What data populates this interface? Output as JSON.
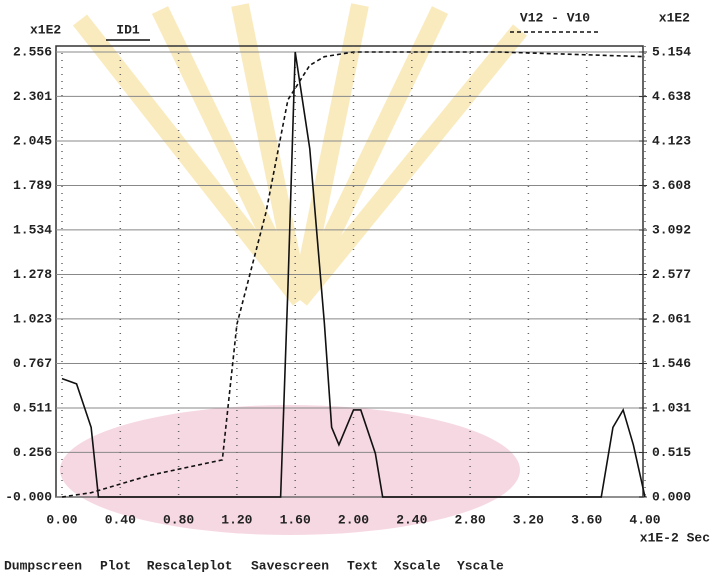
{
  "chart_data": {
    "type": "line",
    "y_unit_label": "x1E2",
    "y2_unit_label": "x1E2",
    "x_unit_label": "x1E-2 Sec",
    "xlim": [
      0,
      4
    ],
    "xticks": [
      {
        "value": 0,
        "label": "0.00"
      },
      {
        "value": 0.4,
        "label": "0.40"
      },
      {
        "value": 0.8,
        "label": "0.80"
      },
      {
        "value": 1.2,
        "label": "1.20"
      },
      {
        "value": 1.6,
        "label": "1.60"
      },
      {
        "value": 2,
        "label": "2.00"
      },
      {
        "value": 2.4,
        "label": "2.40"
      },
      {
        "value": 2.8,
        "label": "2.80"
      },
      {
        "value": 3.2,
        "label": "3.20"
      },
      {
        "value": 3.6,
        "label": "3.60"
      },
      {
        "value": 4,
        "label": "4.00"
      }
    ],
    "ylim": [
      0,
      2.556
    ],
    "yticks": [
      {
        "value": 0,
        "label": "-0.000"
      },
      0.256,
      0.511,
      0.767,
      1.023,
      1.278,
      1.534,
      1.789,
      2.045,
      2.301,
      2.556
    ],
    "y2lim": [
      0,
      5.154
    ],
    "y2ticks": [
      {
        "value": 0,
        "label": "0.000"
      },
      0.515,
      1.031,
      1.546,
      2.061,
      2.577,
      3.092,
      3.608,
      4.123,
      4.638,
      5.154
    ],
    "grid": true,
    "series": [
      {
        "name": "ID1",
        "color": "#111111",
        "style": "solid",
        "x": [
          0,
          0.1,
          0.2,
          0.25,
          1.5,
          1.55,
          1.6,
          1.7,
          1.8,
          1.85,
          1.9,
          2.0,
          2.05,
          2.15,
          2.2,
          3.7,
          3.78,
          3.85,
          3.92,
          4.0
        ],
        "values": [
          0.68,
          0.65,
          0.4,
          0,
          0,
          1.2,
          2.556,
          2.0,
          1.0,
          0.4,
          0.3,
          0.5,
          0.5,
          0.25,
          0,
          0,
          0.4,
          0.5,
          0.3,
          0
        ]
      },
      {
        "name": "V12 - V10",
        "color": "#111111",
        "style": "dashed",
        "axis": "y2",
        "x": [
          0,
          0.2,
          0.6,
          1.1,
          1.2,
          1.4,
          1.55,
          1.7,
          1.8,
          2.0,
          3.0,
          4.0
        ],
        "values": [
          0,
          0.05,
          0.25,
          0.43,
          2.0,
          3.3,
          4.6,
          5.0,
          5.1,
          5.154,
          5.154,
          5.1
        ]
      }
    ]
  },
  "menu": [
    "Dumpscreen",
    "Plot",
    "Rescaleplot",
    "Savescreen",
    "Text",
    "Xscale",
    "Yscale"
  ]
}
